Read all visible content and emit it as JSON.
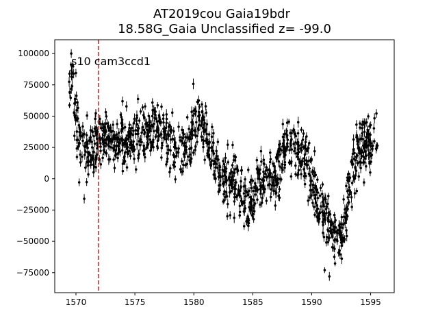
{
  "chart_data": {
    "type": "scatter",
    "title_lines": [
      "AT2019cou  Gaia19bdr",
      "18.58G_Gaia Unclassified z= -99.0"
    ],
    "xlabel": "",
    "ylabel": "",
    "xlim": [
      1568.2,
      1597.0
    ],
    "ylim": [
      -91000,
      111000
    ],
    "xticks": [
      1570,
      1575,
      1580,
      1585,
      1590,
      1595
    ],
    "yticks": [
      -75000,
      -50000,
      -25000,
      0,
      25000,
      50000,
      75000,
      100000
    ],
    "annotation": "s10 cam3ccd1",
    "vline": {
      "x": 1571.9,
      "color": "#d62728",
      "style": "dashed"
    },
    "marker_color": "#000000",
    "grid": false,
    "trend": {
      "x": [
        1569.4,
        1569.6,
        1569.9,
        1570.2,
        1570.6,
        1571.0,
        1571.5,
        1572.0,
        1572.5,
        1573.0,
        1573.5,
        1574.0,
        1574.5,
        1575.0,
        1575.5,
        1576.0,
        1576.5,
        1577.0,
        1577.5,
        1578.0,
        1578.5,
        1579.0,
        1579.5,
        1580.0,
        1580.5,
        1581.0,
        1581.5,
        1582.0,
        1582.5,
        1583.0,
        1583.5,
        1584.0,
        1584.5,
        1585.0,
        1585.5,
        1586.0,
        1586.5,
        1587.0,
        1587.5,
        1588.0,
        1588.5,
        1589.0,
        1589.5,
        1590.0,
        1590.5,
        1591.0,
        1591.5,
        1592.0,
        1592.5,
        1593.0,
        1593.5,
        1594.0,
        1594.5,
        1595.0,
        1595.6
      ],
      "y": [
        70000,
        78000,
        55000,
        35000,
        28000,
        22000,
        25000,
        30000,
        32000,
        30000,
        28000,
        33000,
        30000,
        34000,
        35000,
        36000,
        38000,
        42000,
        38000,
        33000,
        25000,
        22000,
        28000,
        40000,
        45000,
        30000,
        20000,
        12000,
        5000,
        -2000,
        -5000,
        -10000,
        -20000,
        -15000,
        -5000,
        0,
        3000,
        2000,
        20000,
        30000,
        25000,
        20000,
        15000,
        5000,
        -20000,
        -30000,
        -35000,
        -45000,
        -50000,
        -20000,
        5000,
        25000,
        28000,
        30000,
        25000
      ],
      "scatter_sigma": 11000,
      "n_points": 1300
    },
    "outliers": [
      {
        "x": 1569.6,
        "y": 100000
      },
      {
        "x": 1570.7,
        "y": -16000
      },
      {
        "x": 1591.5,
        "y": -78000
      },
      {
        "x": 1591.1,
        "y": -73000
      }
    ]
  }
}
